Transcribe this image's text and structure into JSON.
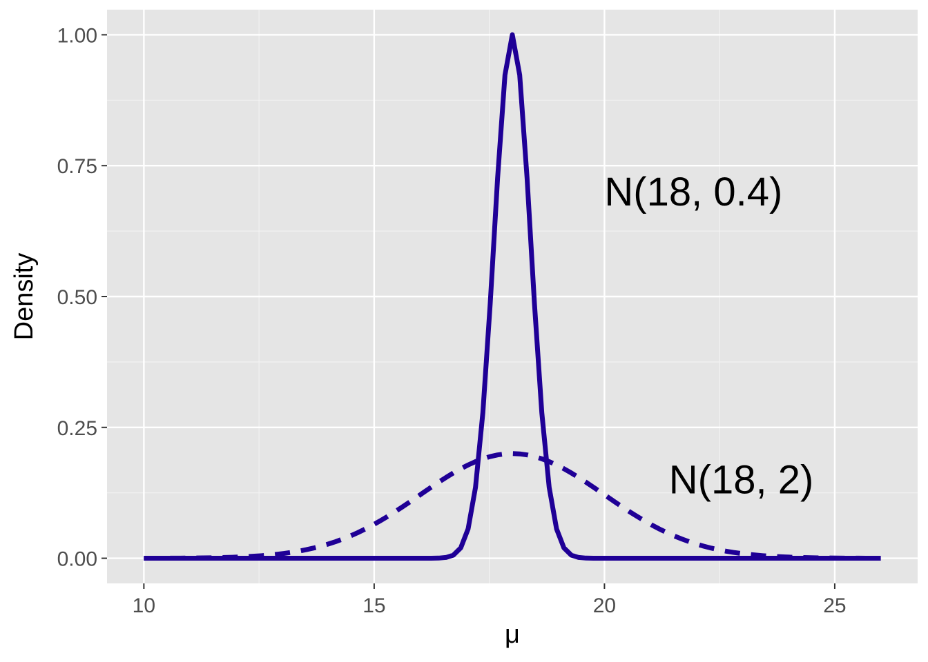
{
  "chart_data": {
    "type": "line",
    "xlabel": "μ",
    "ylabel": "Density",
    "xlim": [
      9.2,
      26.8
    ],
    "ylim": [
      -0.048,
      1.048
    ],
    "x_ticks": [
      10,
      15,
      20,
      25
    ],
    "x_tick_labels": [
      "10",
      "15",
      "20",
      "25"
    ],
    "y_ticks": [
      0,
      0.25,
      0.5,
      0.75,
      1.0
    ],
    "y_tick_labels": [
      "0.00",
      "0.25",
      "0.50",
      "0.75",
      "1.00"
    ],
    "grid": true,
    "legend": "none",
    "line_color": "#1f0096",
    "panel_color": "#e5e5e5",
    "series": [
      {
        "distribution": "normal",
        "mean": 18,
        "sd": 0.4,
        "density_scale": 1.0027,
        "x_range": [
          10,
          26
        ],
        "n_points": 101,
        "linetype": "solid",
        "label": "N(18, 0.4)"
      },
      {
        "distribution": "normal",
        "mean": 18,
        "sd": 2,
        "density_scale": 1.0027,
        "x_range": [
          10,
          26
        ],
        "n_points": 101,
        "linetype": "dashed",
        "label": "N(18, 2)"
      }
    ],
    "annotations": [
      {
        "text": "N(18, 0.4)",
        "x": 20.0,
        "y": 0.7
      },
      {
        "text": "N(18, 2)",
        "x": 21.4,
        "y": 0.15
      }
    ]
  }
}
